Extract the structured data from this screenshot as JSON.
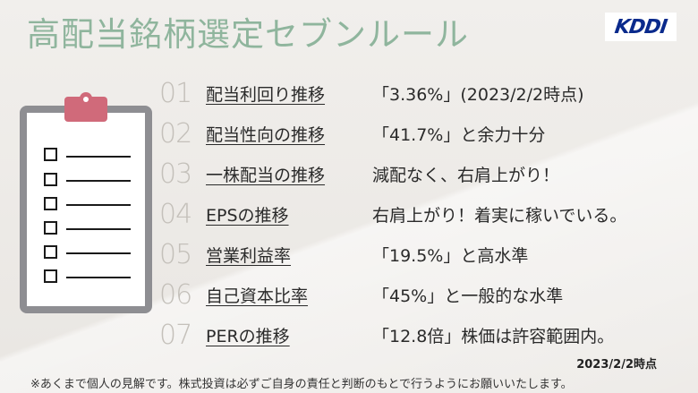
{
  "title": "高配当銘柄選定セブンルール",
  "logo": {
    "text": "KDDI",
    "color": "#0a2a8c"
  },
  "accent_color": "#8fb59d",
  "items": [
    {
      "num": "01",
      "label": "配当利回り推移",
      "desc": "「3.36%」(2023/2/2時点)"
    },
    {
      "num": "02",
      "label": "配当性向の推移",
      "desc": "「41.7%」と余力十分"
    },
    {
      "num": "03",
      "label": "一株配当の推移",
      "desc": "減配なく、右肩上がり！"
    },
    {
      "num": "04",
      "label": "EPSの推移",
      "desc": "右肩上がり！着実に稼いでいる。"
    },
    {
      "num": "05",
      "label": "営業利益率",
      "desc": "「19.5%」と高水準"
    },
    {
      "num": "06",
      "label": "自己資本比率",
      "desc": "「45%」と一般的な水準"
    },
    {
      "num": "07",
      "label": "PERの推移",
      "desc": "「12.8倍」株価は許容範囲内。"
    }
  ],
  "date": "2023/2/2時点",
  "note": "※あくまで個人の見解です。株式投資は必ずご自身の責任と判断のもとで行うようにお願いいたします。",
  "clipboard_icon": "clipboard-checklist-icon"
}
